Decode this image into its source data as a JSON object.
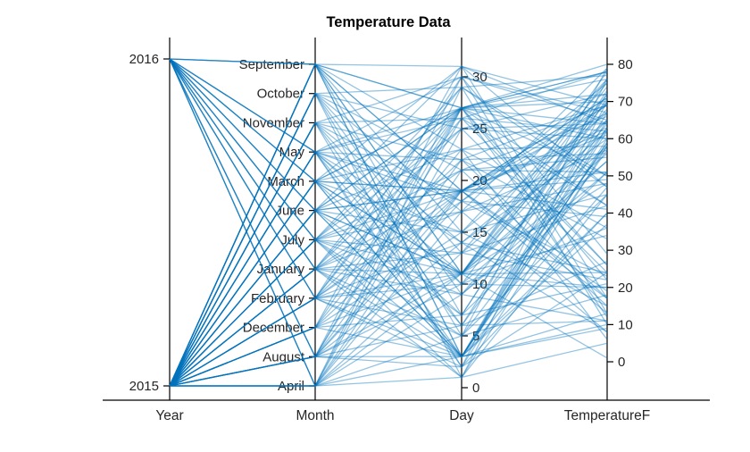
{
  "chart_data": {
    "type": "parallel-coordinates",
    "title": "Temperature Data",
    "line_color": "#0072BD",
    "line_opacity": 0.42,
    "legend": "none",
    "axes": [
      {
        "name": "Year",
        "type": "numeric",
        "ticks": [
          2015,
          2016
        ]
      },
      {
        "name": "Month",
        "type": "categorical",
        "categories_top_to_bottom": [
          "September",
          "October",
          "November",
          "May",
          "March",
          "June",
          "July",
          "January",
          "February",
          "December",
          "August",
          "April"
        ]
      },
      {
        "name": "Day",
        "type": "numeric",
        "ticks": [
          0,
          5,
          10,
          15,
          20,
          25,
          30
        ],
        "min": 0,
        "max": 31
      },
      {
        "name": "TemperatureF",
        "type": "numeric",
        "ticks": [
          0,
          10,
          20,
          30,
          40,
          50,
          60,
          70,
          80
        ],
        "min": -5,
        "max": 85
      }
    ],
    "rows_columns": [
      "Year",
      "Month",
      "Day",
      "TemperatureF"
    ],
    "rows": [
      [
        2015,
        "January",
        1,
        5
      ],
      [
        2015,
        "January",
        5,
        18
      ],
      [
        2015,
        "January",
        9,
        11
      ],
      [
        2015,
        "January",
        13,
        22
      ],
      [
        2015,
        "January",
        17,
        8
      ],
      [
        2015,
        "January",
        21,
        15
      ],
      [
        2015,
        "January",
        25,
        24
      ],
      [
        2015,
        "January",
        29,
        10
      ],
      [
        2015,
        "February",
        2,
        24
      ],
      [
        2015,
        "February",
        6,
        11
      ],
      [
        2015,
        "February",
        10,
        20
      ],
      [
        2015,
        "February",
        14,
        8
      ],
      [
        2015,
        "February",
        18,
        23
      ],
      [
        2015,
        "February",
        22,
        17
      ],
      [
        2015,
        "February",
        26,
        26
      ],
      [
        2015,
        "February",
        30,
        13
      ],
      [
        2015,
        "March",
        3,
        40
      ],
      [
        2015,
        "March",
        7,
        51
      ],
      [
        2015,
        "March",
        11,
        34
      ],
      [
        2015,
        "March",
        15,
        45
      ],
      [
        2015,
        "March",
        19,
        49
      ],
      [
        2015,
        "March",
        23,
        36
      ],
      [
        2015,
        "March",
        27,
        42
      ],
      [
        2015,
        "March",
        31,
        47
      ],
      [
        2015,
        "April",
        1,
        58
      ],
      [
        2015,
        "April",
        5,
        45
      ],
      [
        2015,
        "April",
        9,
        54
      ],
      [
        2015,
        "April",
        13,
        42
      ],
      [
        2015,
        "April",
        17,
        57
      ],
      [
        2015,
        "April",
        21,
        51
      ],
      [
        2015,
        "April",
        25,
        60
      ],
      [
        2015,
        "April",
        29,
        47
      ],
      [
        2015,
        "May",
        2,
        60
      ],
      [
        2015,
        "May",
        6,
        71
      ],
      [
        2015,
        "May",
        10,
        54
      ],
      [
        2015,
        "May",
        14,
        65
      ],
      [
        2015,
        "May",
        18,
        69
      ],
      [
        2015,
        "May",
        22,
        56
      ],
      [
        2015,
        "May",
        26,
        62
      ],
      [
        2015,
        "May",
        30,
        67
      ],
      [
        2015,
        "June",
        3,
        59
      ],
      [
        2015,
        "June",
        7,
        72
      ],
      [
        2015,
        "June",
        11,
        65
      ],
      [
        2015,
        "June",
        15,
        76
      ],
      [
        2015,
        "June",
        19,
        62
      ],
      [
        2015,
        "June",
        23,
        69
      ],
      [
        2015,
        "June",
        27,
        78
      ],
      [
        2015,
        "June",
        31,
        64
      ],
      [
        2015,
        "July",
        1,
        70
      ],
      [
        2015,
        "July",
        5,
        79
      ],
      [
        2015,
        "July",
        9,
        64
      ],
      [
        2015,
        "July",
        13,
        75
      ],
      [
        2015,
        "July",
        17,
        79
      ],
      [
        2015,
        "July",
        21,
        66
      ],
      [
        2015,
        "July",
        25,
        72
      ],
      [
        2015,
        "July",
        29,
        77
      ],
      [
        2015,
        "August",
        2,
        76
      ],
      [
        2015,
        "August",
        6,
        63
      ],
      [
        2015,
        "August",
        10,
        72
      ],
      [
        2015,
        "August",
        14,
        60
      ],
      [
        2015,
        "August",
        18,
        75
      ],
      [
        2015,
        "August",
        22,
        69
      ],
      [
        2015,
        "August",
        26,
        78
      ],
      [
        2015,
        "August",
        30,
        65
      ],
      [
        2015,
        "September",
        3,
        62
      ],
      [
        2015,
        "September",
        7,
        73
      ],
      [
        2015,
        "September",
        11,
        56
      ],
      [
        2015,
        "September",
        15,
        67
      ],
      [
        2015,
        "September",
        19,
        71
      ],
      [
        2015,
        "September",
        23,
        58
      ],
      [
        2015,
        "September",
        27,
        64
      ],
      [
        2015,
        "September",
        31,
        69
      ],
      [
        2015,
        "October",
        1,
        45
      ],
      [
        2015,
        "October",
        5,
        58
      ],
      [
        2015,
        "October",
        9,
        51
      ],
      [
        2015,
        "October",
        13,
        62
      ],
      [
        2015,
        "October",
        17,
        48
      ],
      [
        2015,
        "October",
        21,
        55
      ],
      [
        2015,
        "October",
        25,
        64
      ],
      [
        2015,
        "October",
        29,
        50
      ],
      [
        2015,
        "November",
        2,
        40
      ],
      [
        2015,
        "November",
        6,
        27
      ],
      [
        2015,
        "November",
        10,
        36
      ],
      [
        2015,
        "November",
        14,
        24
      ],
      [
        2015,
        "November",
        18,
        39
      ],
      [
        2015,
        "November",
        22,
        33
      ],
      [
        2015,
        "November",
        26,
        42
      ],
      [
        2015,
        "November",
        30,
        29
      ],
      [
        2015,
        "December",
        3,
        10
      ],
      [
        2015,
        "December",
        7,
        21
      ],
      [
        2015,
        "December",
        11,
        1
      ],
      [
        2015,
        "December",
        15,
        15
      ],
      [
        2015,
        "December",
        19,
        19
      ],
      [
        2015,
        "December",
        23,
        6
      ],
      [
        2015,
        "December",
        27,
        12
      ],
      [
        2015,
        "December",
        31,
        17
      ],
      [
        2016,
        "January",
        3,
        9
      ],
      [
        2016,
        "January",
        11,
        20
      ],
      [
        2016,
        "January",
        19,
        13
      ],
      [
        2016,
        "January",
        27,
        22
      ],
      [
        2016,
        "February",
        3,
        13
      ],
      [
        2016,
        "February",
        11,
        24
      ],
      [
        2016,
        "February",
        19,
        17
      ],
      [
        2016,
        "February",
        27,
        26
      ],
      [
        2016,
        "March",
        3,
        37
      ],
      [
        2016,
        "March",
        11,
        48
      ],
      [
        2016,
        "March",
        19,
        41
      ],
      [
        2016,
        "March",
        27,
        50
      ],
      [
        2016,
        "April",
        3,
        47
      ],
      [
        2016,
        "April",
        11,
        58
      ],
      [
        2016,
        "April",
        19,
        51
      ],
      [
        2016,
        "April",
        27,
        60
      ],
      [
        2016,
        "May",
        3,
        57
      ],
      [
        2016,
        "May",
        11,
        68
      ],
      [
        2016,
        "May",
        19,
        61
      ],
      [
        2016,
        "May",
        27,
        70
      ],
      [
        2016,
        "June",
        3,
        63
      ],
      [
        2016,
        "June",
        11,
        74
      ],
      [
        2016,
        "June",
        19,
        67
      ],
      [
        2016,
        "June",
        27,
        76
      ],
      [
        2016,
        "July",
        3,
        67
      ],
      [
        2016,
        "July",
        11,
        78
      ],
      [
        2016,
        "July",
        19,
        71
      ],
      [
        2016,
        "July",
        27,
        80
      ],
      [
        2016,
        "August",
        3,
        65
      ],
      [
        2016,
        "August",
        11,
        76
      ],
      [
        2016,
        "August",
        19,
        69
      ],
      [
        2016,
        "August",
        27,
        78
      ],
      [
        2016,
        "September",
        3,
        59
      ],
      [
        2016,
        "September",
        11,
        70
      ],
      [
        2016,
        "September",
        19,
        63
      ],
      [
        2016,
        "September",
        27,
        72
      ]
    ]
  }
}
